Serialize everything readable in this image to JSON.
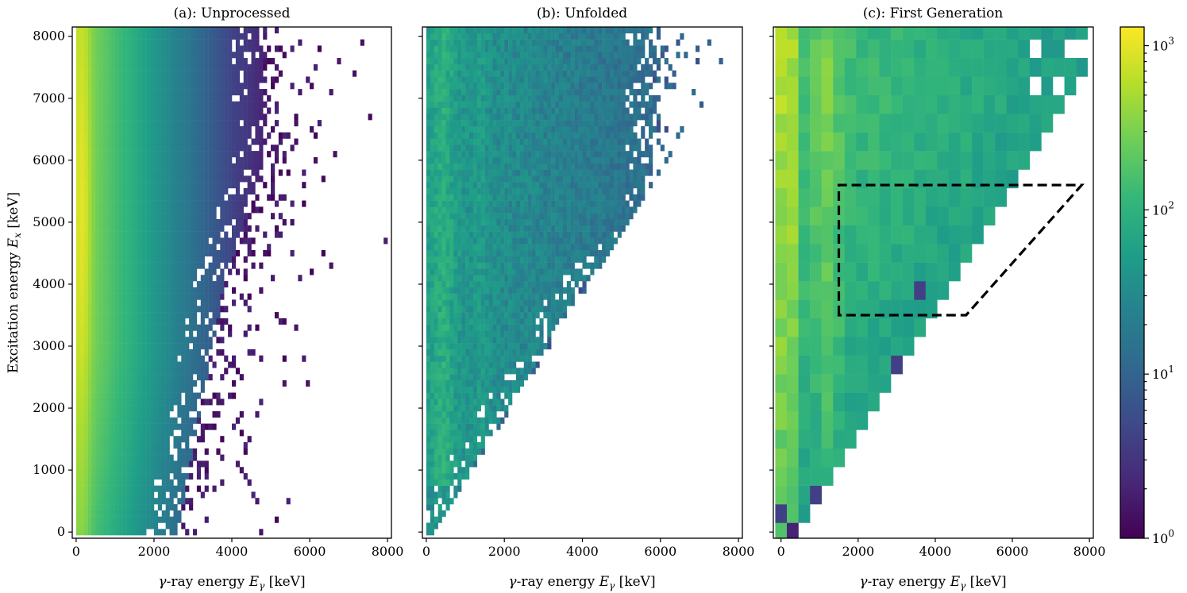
{
  "chart_data": [
    {
      "id": "a",
      "type": "heatmap",
      "title": "(a): Unprocessed",
      "xlabel": "γ-ray energy E_γ [keV]",
      "ylabel": "Excitation energy E_x [keV]",
      "xlim": [
        -100,
        8100
      ],
      "ylim": [
        -100,
        8150
      ],
      "xticks": [
        0,
        2000,
        4000,
        6000,
        8000
      ],
      "yticks": [
        0,
        1000,
        2000,
        3000,
        4000,
        5000,
        6000,
        7000,
        8000
      ],
      "bin_size_keV": 100,
      "x_min": 0,
      "y_min": -50,
      "rows": 82,
      "cols": 81,
      "density_edge_Eg_keV": {
        "Ex": [
          0,
          2000,
          4000,
          6000,
          8000
        ],
        "Eg": [
          2600,
          3200,
          3800,
          4800,
          4800
        ]
      },
      "diagonal_cut": false,
      "peak_counts": 1400,
      "min_counts": 1
    },
    {
      "id": "b",
      "type": "heatmap",
      "title": "(b): Unfolded",
      "xlabel": "γ-ray energy E_γ [keV]",
      "xlim": [
        -100,
        8100
      ],
      "ylim": [
        -100,
        8150
      ],
      "xticks": [
        0,
        2000,
        4000,
        6000,
        8000
      ],
      "yticks": [
        0,
        1000,
        2000,
        3000,
        4000,
        5000,
        6000,
        7000,
        8000
      ],
      "bin_size_keV": 100,
      "x_min": 0,
      "y_min": -50,
      "rows": 82,
      "cols": 81,
      "density_edge_Eg_keV": {
        "Ex": [
          0,
          4000,
          5000,
          6000,
          8000
        ],
        "Eg": [
          200,
          4000,
          5800,
          5800,
          5800
        ]
      },
      "diagonal_cut": true,
      "peak_counts": 600,
      "min_counts": 1
    },
    {
      "id": "c",
      "type": "heatmap",
      "title": "(c): First Generation",
      "xlabel": "γ-ray energy E_γ [keV]",
      "xlim": [
        -200,
        8100
      ],
      "ylim": [
        -100,
        8150
      ],
      "xticks": [
        0,
        2000,
        4000,
        6000,
        8000
      ],
      "yticks": [
        0,
        1000,
        2000,
        3000,
        4000,
        5000,
        6000,
        7000,
        8000
      ],
      "bin_size_keV": 300,
      "x_min": -150,
      "y_min": -150,
      "rows": 28,
      "cols": 27,
      "diagonal_cut": true,
      "peak_counts": 1000,
      "min_counts": 1,
      "fit_region": {
        "style": "dashed",
        "points": [
          [
            1500,
            3500
          ],
          [
            1500,
            5600
          ],
          [
            7800,
            5600
          ],
          [
            4800,
            3500
          ]
        ]
      }
    }
  ],
  "colorbar": {
    "scale": "log",
    "min": 1,
    "max": 1300,
    "ticks": [
      {
        "value": 1,
        "label": "10",
        "exp": "0"
      },
      {
        "value": 10,
        "label": "10",
        "exp": "1"
      },
      {
        "value": 100,
        "label": "10",
        "exp": "2"
      },
      {
        "value": 1000,
        "label": "10",
        "exp": "3"
      }
    ]
  },
  "colormap": [
    "#440154",
    "#482878",
    "#3e4989",
    "#31688e",
    "#26828e",
    "#1f9e89",
    "#35b779",
    "#6ece58",
    "#b5de2b",
    "#fde725"
  ]
}
